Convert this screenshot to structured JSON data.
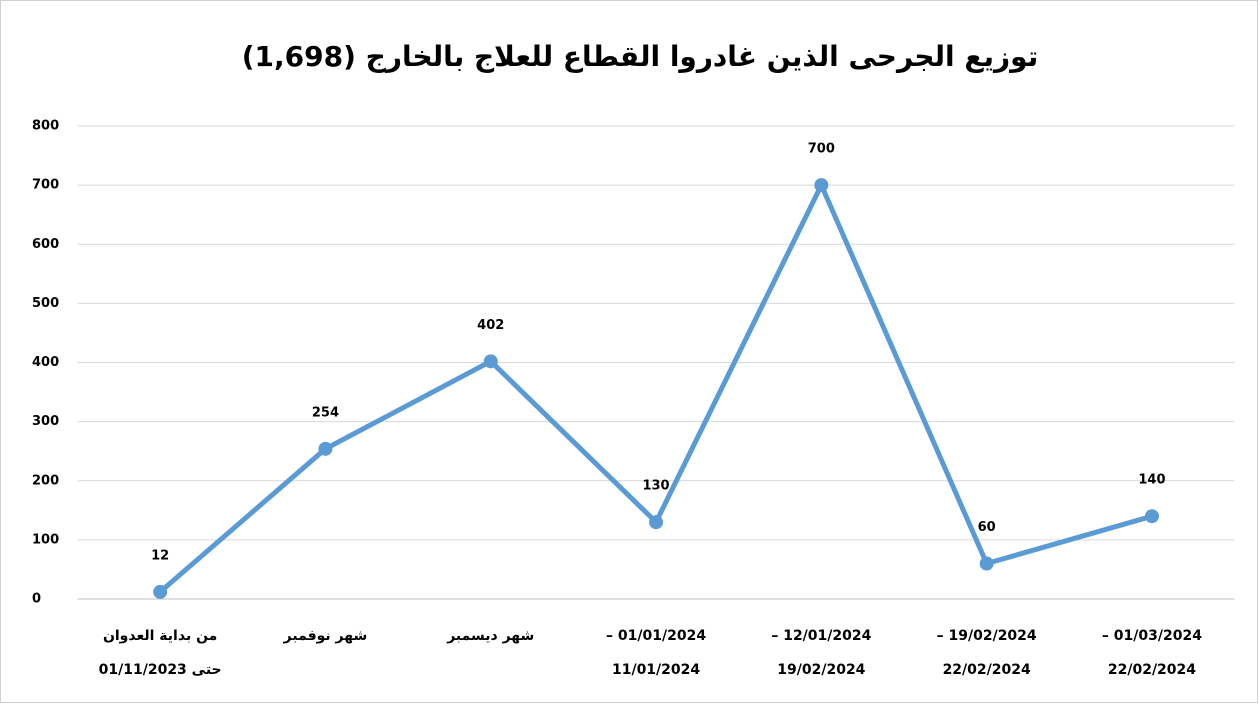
{
  "chart_data": {
    "type": "line",
    "title": "توزيع الجرحى الذين غادروا القطاع للعلاج بالخارج (1,698)",
    "categories": [
      [
        "من بداية العدوان",
        "حتى 01/11/2023"
      ],
      [
        "شهر نوفمبر"
      ],
      [
        "شهر ديسمبر"
      ],
      [
        "01/01/2024 –",
        "11/01/2024"
      ],
      [
        "12/01/2024 –",
        "19/02/2024"
      ],
      [
        "19/02/2024 –",
        "22/02/2024"
      ],
      [
        "01/03/2024 –",
        "22/02/2024"
      ]
    ],
    "values": [
      12,
      254,
      402,
      130,
      700,
      60,
      140
    ],
    "color": "#5b9bd5",
    "ylim": [
      0,
      800
    ],
    "yticks": [
      0,
      100,
      200,
      300,
      400,
      500,
      600,
      700,
      800
    ],
    "grid": true
  }
}
